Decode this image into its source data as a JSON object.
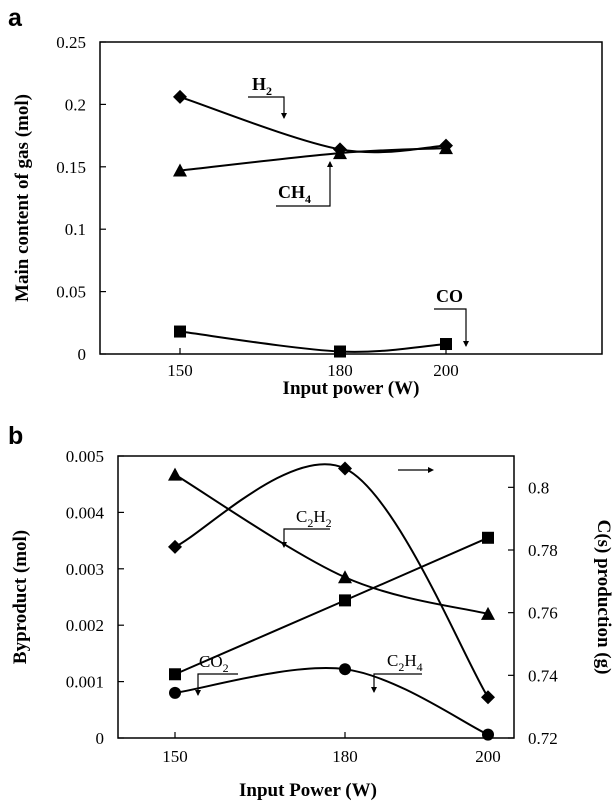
{
  "chart_data": [
    {
      "panel_label": "a",
      "type": "line",
      "x": [
        150,
        180,
        200
      ],
      "xlabel": "Input power (W)",
      "ylabel": "Main content of gas (mol)",
      "ylim": [
        0,
        0.25
      ],
      "y_ticks": [
        "0",
        "0.05",
        "0.1",
        "0.15",
        "0.2",
        "0.25"
      ],
      "x_ticks": [
        "150",
        "180",
        "200"
      ],
      "series": [
        {
          "name": "H2",
          "label_main": "H",
          "label_sub": "2",
          "marker": "diamond",
          "values": [
            0.206,
            0.164,
            0.167
          ]
        },
        {
          "name": "CH4",
          "label_main": "CH",
          "label_sub": "4",
          "marker": "triangle",
          "values": [
            0.147,
            0.161,
            0.165
          ]
        },
        {
          "name": "CO",
          "label_main": "CO",
          "label_sub": "",
          "marker": "square",
          "values": [
            0.018,
            0.002,
            0.008
          ]
        }
      ]
    },
    {
      "panel_label": "b",
      "type": "line",
      "x": [
        150,
        180,
        200
      ],
      "xlabel": "Input Power (W)",
      "ylabel": "Byproduct (mol)",
      "ylim": [
        0,
        0.005
      ],
      "y_ticks": [
        "0",
        "0.001",
        "0.002",
        "0.003",
        "0.004",
        "0.005"
      ],
      "y2label": "C(s) production (g)",
      "y2lim": [
        0.72,
        0.81
      ],
      "y2_ticks": [
        "0.72",
        "0.74",
        "0.76",
        "0.78",
        "0.8"
      ],
      "x_ticks": [
        "150",
        "180",
        "200"
      ],
      "series": [
        {
          "name": "C2H2",
          "label_main": "C",
          "label_mid": "2",
          "label_tail": "H",
          "label_sub": "2",
          "marker": "triangle",
          "axis": "left",
          "values": [
            0.00467,
            0.00285,
            0.0022
          ]
        },
        {
          "name": "CO2",
          "label_main": "CO",
          "label_sub": "2",
          "marker": "square",
          "axis": "left",
          "values": [
            0.00113,
            0.00244,
            0.00355
          ]
        },
        {
          "name": "C2H4",
          "label_main": "C",
          "label_mid": "2",
          "label_tail": "H",
          "label_sub": "4",
          "marker": "circle",
          "axis": "left",
          "values": [
            0.0008,
            0.00122,
            6e-05
          ]
        },
        {
          "name": "C(s)",
          "marker": "diamond",
          "axis": "right",
          "values": [
            0.781,
            0.806,
            0.733
          ]
        }
      ]
    }
  ]
}
